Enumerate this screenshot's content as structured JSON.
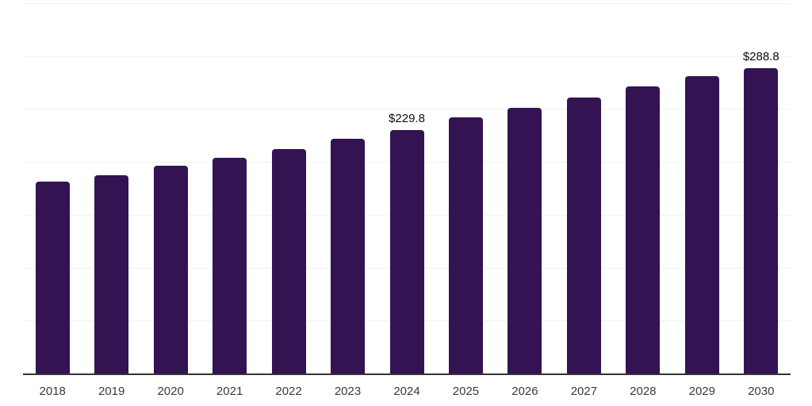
{
  "chart_data": {
    "type": "bar",
    "title": "",
    "xlabel": "",
    "ylabel": "",
    "categories": [
      "2018",
      "2019",
      "2020",
      "2021",
      "2022",
      "2023",
      "2024",
      "2025",
      "2026",
      "2027",
      "2028",
      "2029",
      "2030"
    ],
    "values": [
      181,
      187,
      196,
      204,
      212,
      222,
      229.8,
      242,
      251,
      261,
      271,
      281,
      288.8
    ],
    "data_labels": [
      {
        "category": "2024",
        "text": "$229.8"
      },
      {
        "category": "2030",
        "text": "$288.8"
      }
    ],
    "ylim": [
      0,
      350
    ],
    "gridline_step": 50,
    "grid": "horizontal-only",
    "y_axis_labels": "none",
    "legend": "none",
    "colors": {
      "bar": "#341352",
      "gridline": "#f1f1f1",
      "axis_line": "#333333",
      "tick_label": "#3a3a3a",
      "value_label": "#0d0d0d",
      "background": "#ffffff"
    }
  }
}
